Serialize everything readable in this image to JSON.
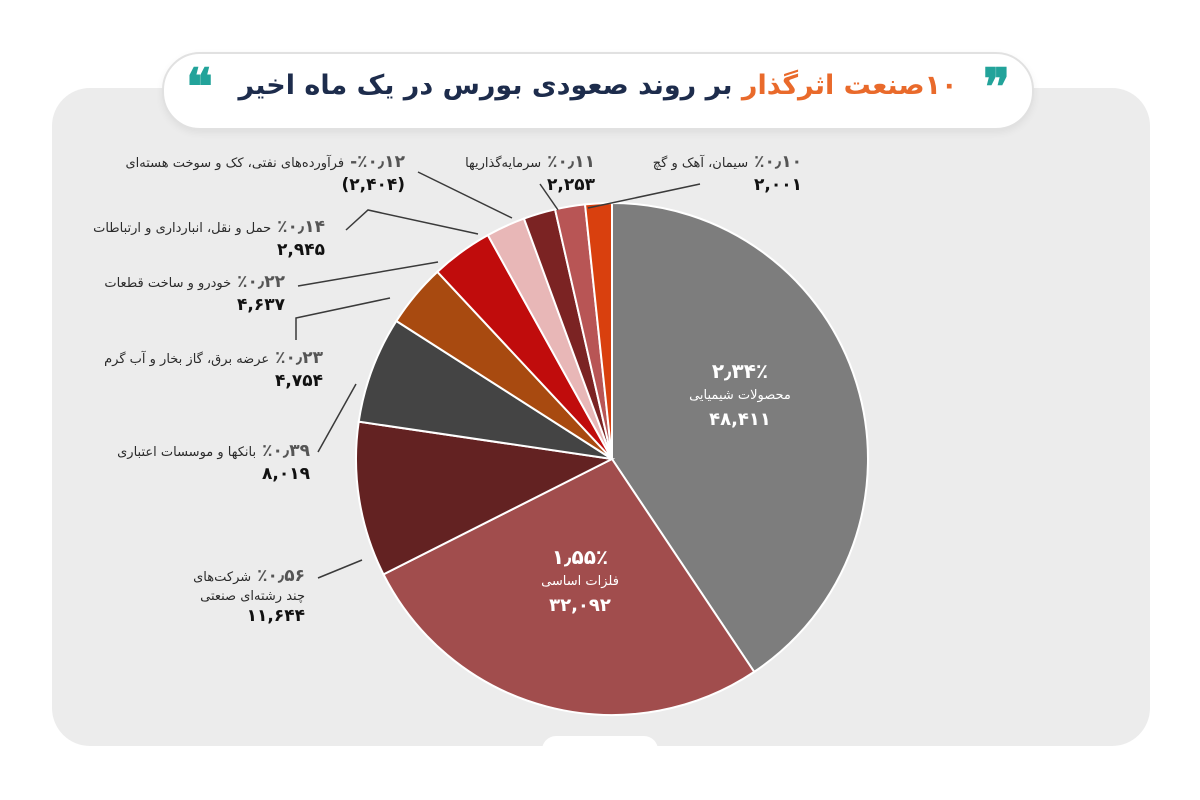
{
  "title": {
    "accent_text": "۱۰صنعت اثرگذار",
    "main_text": " بر روند صعودی بورس در یک ماه اخیر",
    "quote_open": "❞",
    "quote_close": "❝"
  },
  "colors": {
    "background": "#ececec",
    "title_accent": "#e96a2b",
    "title_main": "#1d2c4c",
    "quote": "#22a39a"
  },
  "chart_data": {
    "type": "pie",
    "slices": [
      {
        "label": "محصولات شیمیایی",
        "percent_text": "۲٫۳۴٪",
        "value_text": "۴۸,۴۱۱",
        "value": 48411,
        "color": "#7d7d7d"
      },
      {
        "label": "فلزات اساسی",
        "percent_text": "۱٫۵۵٪",
        "value_text": "۳۲,۰۹۲",
        "value": 32092,
        "color": "#a14d4d"
      },
      {
        "label": "شرکت‌های چند رشته‌ای صنعتی",
        "label_line1": "شرکت‌های",
        "label_line2": "چند رشته‌ای صنعتی",
        "percent_text": "٪۰٫۵۶",
        "value_text": "۱۱,۶۴۴",
        "value": 11644,
        "color": "#632222"
      },
      {
        "label": "بانکها و موسسات اعتباری",
        "percent_text": "٪۰٫۳۹",
        "value_text": "۸,۰۱۹",
        "value": 8019,
        "color": "#444444"
      },
      {
        "label": "عرضه برق، گاز بخار و آب گرم",
        "percent_text": "٪۰٫۲۳",
        "value_text": "۴,۷۵۴",
        "value": 4754,
        "color": "#a84a10"
      },
      {
        "label": "خودرو و ساخت قطعات",
        "percent_text": "٪۰٫۲۲",
        "value_text": "۴,۶۳۷",
        "value": 4637,
        "color": "#c00c0c"
      },
      {
        "label": "حمل و نقل، انبارداری و ارتباطات",
        "percent_text": "٪۰٫۱۴",
        "value_text": "۲,۹۴۵",
        "value": 2945,
        "color": "#e8b7b7"
      },
      {
        "label": "فرآورده‌های نفتی، کک و سوخت هسته‌ای",
        "percent_text": "٪۰٫۱۲-",
        "value_text": "(۲,۴۰۴)",
        "value": -2404,
        "color": "#7b2323"
      },
      {
        "label": "سرمایه‌گذاریها",
        "percent_text": "٪۰٫۱۱",
        "value_text": "۲,۲۵۳",
        "value": 2253,
        "color": "#b85555"
      },
      {
        "label": "سیمان، آهک و گچ",
        "percent_text": "٪۰٫۱۰",
        "value_text": "۲,۰۰۱",
        "value": 2001,
        "color": "#d9400e"
      }
    ]
  }
}
